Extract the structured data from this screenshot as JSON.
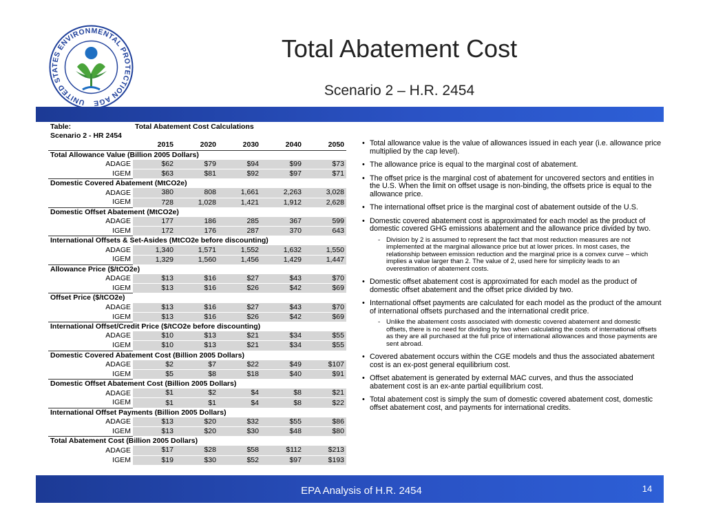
{
  "logo": {
    "text": "UNITED STATES ENVIRONMENTAL PROTECTION AGENCY"
  },
  "header": {
    "title": "Total Abatement Cost",
    "subtitle": "Scenario 2 – H.R. 2454"
  },
  "table": {
    "label": "Table:",
    "title": "Total Abatement Cost Calculations",
    "scenario": "Scenario 2 - HR 2454",
    "columns": [
      "2015",
      "2020",
      "2030",
      "2040",
      "2050"
    ],
    "sections": [
      {
        "heading": "Total Allowance Value (Billion 2005 Dollars)",
        "rows": [
          {
            "model": "ADAGE",
            "values": [
              "$62",
              "$79",
              "$94",
              "$99",
              "$73"
            ]
          },
          {
            "model": "IGEM",
            "values": [
              "$63",
              "$81",
              "$92",
              "$97",
              "$71"
            ]
          }
        ]
      },
      {
        "heading": "Domestic Covered Abatement (MtCO2e)",
        "rows": [
          {
            "model": "ADAGE",
            "values": [
              "380",
              "808",
              "1,661",
              "2,263",
              "3,028"
            ]
          },
          {
            "model": "IGEM",
            "values": [
              "728",
              "1,028",
              "1,421",
              "1,912",
              "2,628"
            ]
          }
        ]
      },
      {
        "heading": "Domestic Offset Abatement (MtCO2e)",
        "rows": [
          {
            "model": "ADAGE",
            "values": [
              "177",
              "186",
              "285",
              "367",
              "599"
            ]
          },
          {
            "model": "IGEM",
            "values": [
              "172",
              "176",
              "287",
              "370",
              "643"
            ]
          }
        ]
      },
      {
        "heading": "International Offsets & Set-Asides (MtCO2e before discounting)",
        "rows": [
          {
            "model": "ADAGE",
            "values": [
              "1,340",
              "1,571",
              "1,552",
              "1,632",
              "1,550"
            ]
          },
          {
            "model": "IGEM",
            "values": [
              "1,329",
              "1,560",
              "1,456",
              "1,429",
              "1,447"
            ]
          }
        ]
      },
      {
        "heading": "Allowance Price ($/tCO2e)",
        "rows": [
          {
            "model": "ADAGE",
            "values": [
              "$13",
              "$16",
              "$27",
              "$43",
              "$70"
            ]
          },
          {
            "model": "IGEM",
            "values": [
              "$13",
              "$16",
              "$26",
              "$42",
              "$69"
            ]
          }
        ]
      },
      {
        "heading": "Offset Price ($/tCO2e)",
        "rows": [
          {
            "model": "ADAGE",
            "values": [
              "$13",
              "$16",
              "$27",
              "$43",
              "$70"
            ]
          },
          {
            "model": "IGEM",
            "values": [
              "$13",
              "$16",
              "$26",
              "$42",
              "$69"
            ]
          }
        ]
      },
      {
        "heading": "International Offset/Credit Price ($/tCO2e before discounting)",
        "rows": [
          {
            "model": "ADAGE",
            "values": [
              "$10",
              "$13",
              "$21",
              "$34",
              "$55"
            ]
          },
          {
            "model": "IGEM",
            "values": [
              "$10",
              "$13",
              "$21",
              "$34",
              "$55"
            ]
          }
        ]
      },
      {
        "heading": "Domestic Covered Abatement Cost (Billion 2005 Dollars)",
        "rows": [
          {
            "model": "ADAGE",
            "values": [
              "$2",
              "$7",
              "$22",
              "$49",
              "$107"
            ]
          },
          {
            "model": "IGEM",
            "values": [
              "$5",
              "$8",
              "$18",
              "$40",
              "$91"
            ]
          }
        ]
      },
      {
        "heading": "Domestic Offset Abatement Cost (Billion 2005 Dollars)",
        "rows": [
          {
            "model": "ADAGE",
            "values": [
              "$1",
              "$2",
              "$4",
              "$8",
              "$21"
            ]
          },
          {
            "model": "IGEM",
            "values": [
              "$1",
              "$1",
              "$4",
              "$8",
              "$22"
            ]
          }
        ]
      },
      {
        "heading": "International Offset Payments (Billion 2005 Dollars)",
        "rows": [
          {
            "model": "ADAGE",
            "values": [
              "$13",
              "$20",
              "$32",
              "$55",
              "$86"
            ]
          },
          {
            "model": "IGEM",
            "values": [
              "$13",
              "$20",
              "$30",
              "$48",
              "$80"
            ]
          }
        ]
      },
      {
        "heading": "Total Abatement Cost (Billion 2005 Dollars)",
        "rows": [
          {
            "model": "ADAGE",
            "values": [
              "$17",
              "$28",
              "$58",
              "$112",
              "$213"
            ]
          },
          {
            "model": "IGEM",
            "values": [
              "$19",
              "$30",
              "$52",
              "$97",
              "$193"
            ]
          }
        ]
      }
    ]
  },
  "bullets": [
    {
      "text": "Total allowance value is the value of allowances issued in each year (i.e. allowance price multiplied by the cap level)."
    },
    {
      "text": "The allowance price is equal to the marginal cost of abatement."
    },
    {
      "text": "The offset price is the marginal cost of abatement for uncovered sectors and entities in the U.S. When the limit on offset usage is non-binding, the offsets price is equal to the allowance price."
    },
    {
      "text": "The international offset price is the marginal cost of abatement outside of the U.S."
    },
    {
      "text": "Domestic covered abatement cost is approximated for each model as the product of domestic covered GHG emissions abatement and the allowance price divided by two.",
      "sub": [
        "Division by 2 is assumed to represent the fact that most reduction measures are not implemented at the marginal allowance price but at lower prices.  In most cases, the relationship between emission reduction and the marginal price is a convex curve – which implies a value larger than 2.  The value of 2, used here for simplicity leads to an overestimation of abatement costs."
      ]
    },
    {
      "text": "Domestic offset abatement cost is approximated for each model as the product of domestic offset abatement and the offset price divided by two."
    },
    {
      "text": "International offset payments are calculated for each model as the product of the amount of international offsets purchased and the international credit price.",
      "sub": [
        "Unlike the abatement costs associated with domestic covered abatement and domestic offsets, there is no need for dividing by two when calculating the costs of international offsets as they are all purchased at the full price of international allowances and those payments are sent abroad."
      ]
    },
    {
      "text": "Covered abatement occurs within the CGE models and thus the associated abatement cost is an ex-post general equilibrium cost."
    },
    {
      "text": "Offset abatement is generated by external MAC curves, and thus the associated abatement cost is an ex-ante partial equilibrium cost."
    },
    {
      "text": "Total abatement cost is simply the sum of domestic covered abatement cost, domestic offset abatement cost, and payments for international credits."
    }
  ],
  "footer": {
    "text": "EPA Analysis of H.R. 2454",
    "page": "14"
  }
}
